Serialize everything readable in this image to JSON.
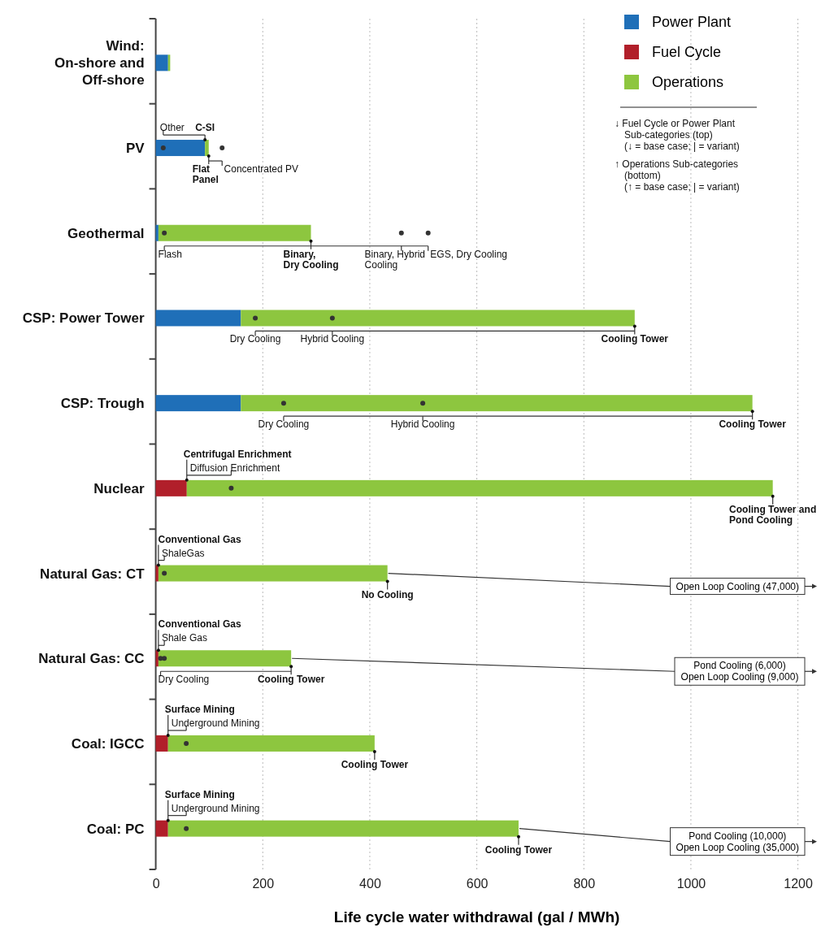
{
  "chart_data": {
    "type": "bar",
    "orientation": "horizontal",
    "stacked": true,
    "xlabel": "Life cycle water withdrawal (gal / MWh)",
    "categories": [
      "Wind: On-shore and Off-shore",
      "PV",
      "Geothermal",
      "CSP: Power Tower",
      "CSP: Trough",
      "Nuclear",
      "Natural Gas: CT",
      "Natural Gas: CC",
      "Coal: IGCC",
      "Coal: PC"
    ],
    "series": [
      {
        "name": "Power Plant",
        "color": "#1f6fb8",
        "values": [
          23,
          92,
          5,
          159,
          159,
          null,
          null,
          null,
          null,
          null
        ]
      },
      {
        "name": "Fuel Cycle",
        "color": "#b11f2a",
        "values": [
          null,
          null,
          null,
          null,
          null,
          58,
          5,
          5,
          23,
          23
        ]
      },
      {
        "name": "Operations",
        "color": "#8dc63f",
        "values": [
          4,
          7,
          285,
          736,
          956,
          1095,
          428,
          248,
          386,
          655
        ]
      },
      {
        "type": "scatter",
        "color": "#333333",
        "values": [
          null,
          14,
          null,
          null,
          null,
          141,
          16,
          16,
          57,
          57
        ],
        "value_labels": [
          null,
          "Other",
          null,
          null,
          null,
          "Diffusion Enrichment",
          "ShaleGas",
          "Shale Gas",
          "Underground Mining",
          "Underground Mining"
        ]
      },
      {
        "type": "scatter",
        "color": "#333333",
        "values": [
          null,
          124,
          16,
          186,
          239,
          null,
          null,
          9,
          null,
          null
        ],
        "value_labels": [
          null,
          "Concentrated PV",
          "Flash",
          "Dry Cooling",
          "Dry Cooling",
          null,
          null,
          "Dry Cooling",
          null,
          null
        ]
      },
      {
        "type": "scatter",
        "color": "#333333",
        "values": [
          null,
          null,
          459,
          330,
          499,
          null,
          null,
          null,
          null,
          null
        ],
        "value_labels": [
          null,
          null,
          "Binary, Hybrid\nCooling",
          "Hybrid Cooling",
          "Hybrid Cooling",
          null,
          null,
          null,
          null,
          null
        ]
      },
      {
        "type": "scatter",
        "color": "#333333",
        "values": [
          null,
          null,
          509,
          null,
          null,
          null,
          null,
          null,
          null,
          null
        ],
        "value_labels": [
          null,
          null,
          "EGS, Dry Cooling",
          null,
          null,
          null,
          null,
          null,
          null,
          null
        ]
      }
    ],
    "xlim": [
      0,
      1200
    ],
    "xticks": [
      0,
      200,
      400,
      600,
      800,
      1000,
      1200
    ],
    "grid": "x",
    "legend": "top right",
    "marker": "circle",
    "annotations": [
      {
        "text": "C-SI",
        "x": 92,
        "y": "PV"
      },
      {
        "text": "Flat\nPanel",
        "x": 99,
        "y": "PV"
      },
      {
        "text": "Binary,\nDry Cooling",
        "x": 290,
        "y": "Geothermal"
      },
      {
        "text": "Cooling Tower",
        "x": 895,
        "y": "CSP: Power Tower"
      },
      {
        "text": "Cooling Tower",
        "x": 1115,
        "y": "CSP: Trough"
      },
      {
        "text": "Centrifugal Enrichment",
        "x": 58,
        "y": "Nuclear"
      },
      {
        "text": "Cooling Tower and\nPond Cooling",
        "x": 1153,
        "y": "Nuclear"
      },
      {
        "text": "Conventional Gas",
        "x": 5,
        "y": "Natural Gas: CT"
      },
      {
        "text": "No Cooling",
        "x": 433,
        "y": "Natural Gas: CT"
      },
      {
        "text": "Open Loop Cooling (47,000)",
        "x": 433,
        "y": "Natural Gas: CT"
      },
      {
        "text": "Conventional Gas",
        "x": 5,
        "y": "Natural Gas: CC"
      },
      {
        "text": "Cooling Tower",
        "x": 253,
        "y": "Natural Gas: CC"
      },
      {
        "text": "Pond Cooling (6,000)\nOpen Loop Cooling (9,000)",
        "x": 253,
        "y": "Natural Gas: CC"
      },
      {
        "text": "Surface Mining",
        "x": 23,
        "y": "Coal: IGCC"
      },
      {
        "text": "Cooling Tower",
        "x": 409,
        "y": "Coal: IGCC"
      },
      {
        "text": "Surface Mining",
        "x": 23,
        "y": "Coal: PC"
      },
      {
        "text": "Cooling Tower",
        "x": 678,
        "y": "Coal: PC"
      },
      {
        "text": "Pond Cooling (10,000)\nOpen Loop Cooling (35,000)",
        "x": 678,
        "y": "Coal: PC"
      },
      "↓ Fuel Cycle or Power Plant\nSub-categories (top)\n(↓ = base case; | = variant)",
      "↑ Operations Sub-categories\n(bottom)\n(↑ = base case; | = variant)"
    ]
  }
}
